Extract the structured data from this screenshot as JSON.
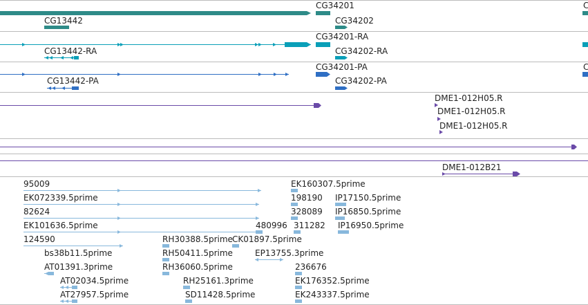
{
  "colors": {
    "gene": "#2e8b88",
    "transcript_ra": "#0a9fb8",
    "transcript_pa": "#2f6fc4",
    "est_clone": "#6a4aa8",
    "read": "#88b8dc",
    "track_border": "#bbbbbb"
  },
  "tracks": {
    "genes": {
      "labels": [
        "CG34201",
        "CG13442",
        "CG34202"
      ]
    },
    "transcripts_ra": {
      "labels": [
        "CG34201-RA",
        "CG13442-RA",
        "CG34202-RA"
      ]
    },
    "transcripts_pa": {
      "labels": [
        "CG34201-PA",
        "CG13442-PA",
        "CG34202-PA"
      ]
    },
    "clones": {
      "labels": [
        "DME1-012H05.R",
        "DME1-012H05.R",
        "DME1-012H05.R"
      ]
    },
    "clone_b": {
      "labels": [
        "DME1-012B21"
      ]
    },
    "reads": {
      "labels": [
        "95009",
        "EK160307.5prime",
        "EK072339.5prime",
        "198190",
        "IP17150.5prime",
        "82624",
        "328089",
        "IP16850.5prime",
        "EK101636.5prime",
        "480996",
        "311282",
        "IP16950.5prime",
        "124590",
        "RH30388.5prime",
        "CK01897.5prime",
        "bs38b11.5prime",
        "RH50411.5prime",
        "EP13755.3prime",
        "AT01391.3prime",
        "RH36060.5prime",
        "236676",
        "AT02034.5prime",
        "RH25161.3prime",
        "EK176352.5prime",
        "AT27957.5prime",
        "SD11428.5prime",
        "EK243337.5prime"
      ]
    }
  }
}
